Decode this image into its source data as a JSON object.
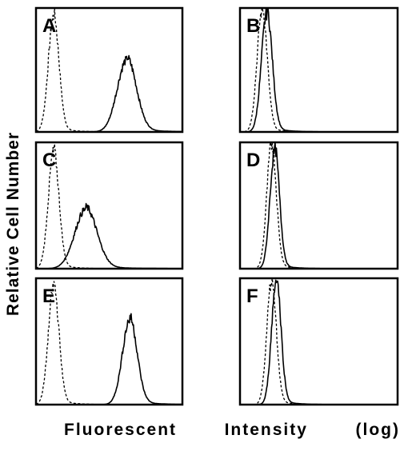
{
  "ylabel": "Relative Cell Number",
  "xlabel_words": [
    "Fluorescent",
    "Intensity",
    "(log)"
  ],
  "chart_data": [
    {
      "type": "histogram",
      "panel_label": "A",
      "xscale": "log",
      "xlim": [
        0,
        100
      ],
      "ylim": [
        0,
        100
      ],
      "series": [
        {
          "style": "dashed",
          "peak_x": 12,
          "peak_height": 93,
          "width": 3.6
        },
        {
          "style": "solid",
          "peak_x": 62,
          "peak_height": 58,
          "width": 6.5
        }
      ]
    },
    {
      "type": "histogram",
      "panel_label": "B",
      "xscale": "log",
      "xlim": [
        0,
        100
      ],
      "ylim": [
        0,
        100
      ],
      "series": [
        {
          "style": "dashed",
          "peak_x": 14,
          "peak_height": 98,
          "width": 3.2
        },
        {
          "style": "solid",
          "peak_x": 17,
          "peak_height": 96,
          "width": 3.4
        }
      ]
    },
    {
      "type": "histogram",
      "panel_label": "C",
      "xscale": "log",
      "xlim": [
        0,
        100
      ],
      "ylim": [
        0,
        100
      ],
      "series": [
        {
          "style": "dashed",
          "peak_x": 12,
          "peak_height": 92,
          "width": 3.6
        },
        {
          "style": "solid",
          "peak_x": 34,
          "peak_height": 47,
          "width": 7.5
        }
      ]
    },
    {
      "type": "histogram",
      "panel_label": "D",
      "xscale": "log",
      "xlim": [
        0,
        100
      ],
      "ylim": [
        0,
        100
      ],
      "series": [
        {
          "style": "dashed",
          "peak_x": 20,
          "peak_height": 98,
          "width": 3.0
        },
        {
          "style": "solid",
          "peak_x": 22,
          "peak_height": 93,
          "width": 3.0
        }
      ]
    },
    {
      "type": "histogram",
      "panel_label": "E",
      "xscale": "log",
      "xlim": [
        0,
        100
      ],
      "ylim": [
        0,
        100
      ],
      "series": [
        {
          "style": "dashed",
          "peak_x": 12,
          "peak_height": 93,
          "width": 3.6
        },
        {
          "style": "solid",
          "peak_x": 64,
          "peak_height": 67,
          "width": 5.0
        }
      ]
    },
    {
      "type": "histogram",
      "panel_label": "F",
      "xscale": "log",
      "xlim": [
        0,
        100
      ],
      "ylim": [
        0,
        100
      ],
      "series": [
        {
          "style": "dashed",
          "peak_x": 20,
          "peak_height": 98,
          "width": 3.0
        },
        {
          "style": "solid",
          "peak_x": 23,
          "peak_height": 98,
          "width": 3.0
        }
      ]
    }
  ]
}
